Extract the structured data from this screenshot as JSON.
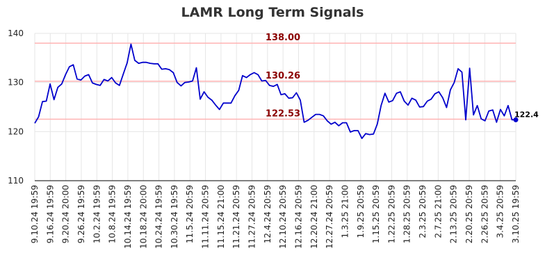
{
  "chart_data": {
    "type": "line",
    "title": "LAMR Long Term Signals",
    "xlabel": "",
    "ylabel": "",
    "ylim": [
      110,
      140
    ],
    "yticks": [
      110,
      120,
      130,
      140
    ],
    "grid": true,
    "xticks": [
      "9.10.24 19:59",
      "9.16.24 19:59",
      "9.20.24 20:00",
      "9.26.24 19:59",
      "10.2.24 19:59",
      "10.8.24 19:59",
      "10.14.24 19:59",
      "10.18.24 20:00",
      "10.24.24 19:59",
      "10.30.24 19:59",
      "11.5.24 20:59",
      "11.11.24 20:59",
      "11.15.24 21:00",
      "11.21.24 20:59",
      "11.27.24 20:59",
      "12.4.24 20:59",
      "12.10.24 20:59",
      "12.16.24 20:59",
      "12.20.24 21:00",
      "12.27.24 20:59",
      "1.3.25 21:00",
      "1.9.25 20:59",
      "1.15.25 20:59",
      "1.22.25 20:59",
      "1.28.25 20:59",
      "2.3.25 20:59",
      "2.7.25 21:00",
      "2.13.25 20:59",
      "2.20.25 20:59",
      "2.26.25 20:59",
      "3.4.25 20:59",
      "3.10.25 19:59"
    ],
    "levels": [
      {
        "value": 138.0,
        "label": "138.00"
      },
      {
        "value": 130.26,
        "label": "130.26"
      },
      {
        "value": 122.53,
        "label": "122.53"
      }
    ],
    "last_value_label": "122.4",
    "series": [
      {
        "color": "#0000cc",
        "values": [
          121.7,
          123.0,
          126.1,
          126.2,
          129.7,
          126.5,
          129.0,
          129.7,
          131.6,
          133.2,
          133.6,
          130.7,
          130.5,
          131.3,
          131.6,
          129.9,
          129.6,
          129.4,
          130.6,
          130.3,
          131.0,
          129.9,
          129.4,
          131.7,
          134.0,
          137.8,
          134.5,
          133.9,
          134.1,
          134.1,
          133.9,
          133.8,
          133.8,
          132.7,
          132.8,
          132.6,
          132.0,
          130.0,
          129.3,
          130.0,
          130.1,
          130.3,
          133.0,
          126.6,
          128.1,
          127.0,
          126.4,
          125.4,
          124.5,
          125.8,
          125.8,
          125.8,
          127.3,
          128.4,
          131.4,
          131.0,
          131.6,
          132.0,
          131.6,
          130.3,
          130.4,
          129.4,
          129.2,
          129.6,
          127.5,
          127.7,
          126.8,
          126.9,
          127.9,
          126.4,
          121.9,
          122.3,
          122.9,
          123.5,
          123.5,
          123.2,
          122.2,
          121.5,
          121.9,
          121.2,
          121.8,
          121.8,
          119.9,
          120.2,
          120.2,
          118.6,
          119.6,
          119.4,
          119.5,
          121.5,
          125.3,
          127.8,
          126.0,
          126.3,
          127.8,
          128.1,
          126.2,
          125.4,
          126.8,
          126.4,
          125.0,
          125.1,
          126.2,
          126.6,
          127.7,
          128.1,
          126.9,
          124.9,
          128.5,
          130.0,
          132.8,
          132.1,
          122.4,
          132.9,
          123.4,
          125.3,
          122.6,
          122.2,
          124.2,
          124.4,
          121.9,
          124.5,
          123.2,
          125.3,
          122.4,
          122.4
        ]
      }
    ]
  }
}
